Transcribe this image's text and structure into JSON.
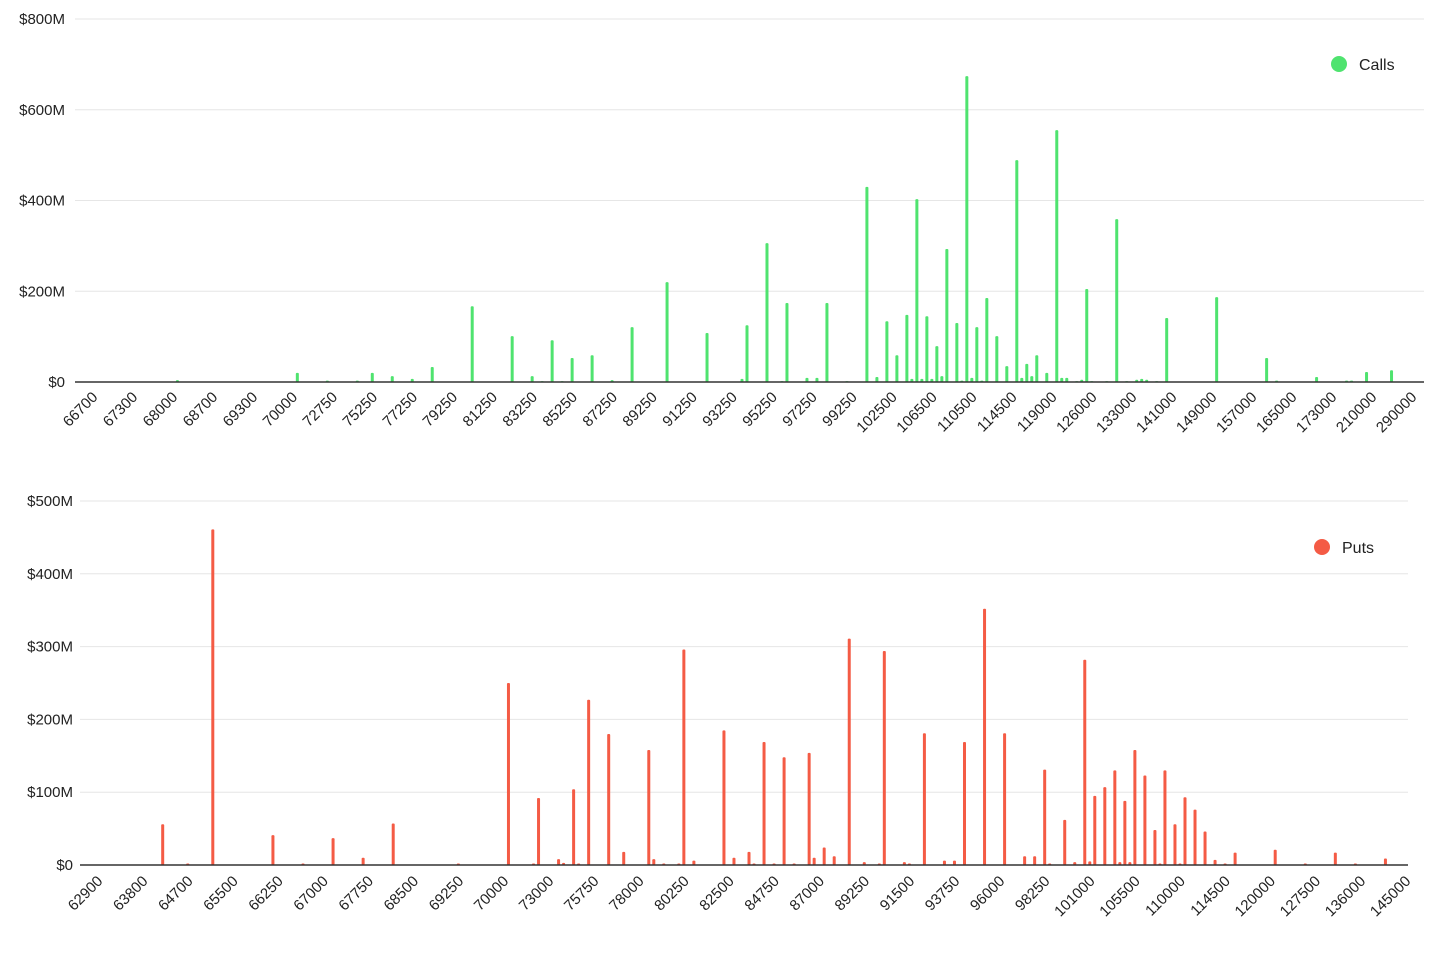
{
  "chart_data": [
    {
      "type": "bar",
      "legend": {
        "label": "Calls",
        "position": "top-right"
      },
      "color": "#4fe36f",
      "y_tick_labels": [
        "$0",
        "$200M",
        "$400M",
        "$600M",
        "$800M"
      ],
      "ylim": [
        0,
        800
      ],
      "yunit": "$M",
      "grid": true,
      "tick_labels": [
        "66700",
        "67300",
        "68000",
        "68700",
        "69300",
        "70000",
        "72750",
        "75250",
        "77250",
        "79250",
        "81250",
        "83250",
        "85250",
        "87250",
        "89250",
        "91250",
        "93250",
        "95250",
        "97250",
        "99250",
        "102500",
        "106500",
        "110500",
        "114500",
        "119000",
        "126000",
        "133000",
        "141000",
        "149000",
        "157000",
        "165000",
        "173000",
        "210000",
        "290000"
      ],
      "values": [
        0,
        0,
        0,
        0,
        0,
        0,
        0,
        0,
        0,
        0,
        0,
        0,
        0,
        0,
        0,
        0,
        0,
        0,
        0,
        0,
        4,
        0,
        0,
        0,
        0,
        0,
        0,
        0,
        0,
        0,
        0,
        0,
        0,
        0,
        0,
        0,
        0,
        0,
        0,
        0,
        0,
        0,
        0,
        0,
        20,
        0,
        0,
        0,
        0,
        0,
        3,
        0,
        0,
        0,
        0,
        0,
        3,
        0,
        0,
        20,
        0,
        0,
        0,
        13,
        0,
        0,
        0,
        7,
        0,
        0,
        0,
        33,
        0,
        0,
        0,
        0,
        0,
        0,
        0,
        167,
        0,
        0,
        0,
        0,
        0,
        0,
        0,
        101,
        0,
        0,
        0,
        13,
        0,
        2,
        0,
        92,
        0,
        2,
        0,
        53,
        0,
        0,
        0,
        59,
        0,
        0,
        0,
        4,
        0,
        0,
        0,
        121,
        0,
        0,
        0,
        0,
        0,
        0,
        220,
        0,
        0,
        0,
        0,
        0,
        0,
        0,
        108,
        0,
        0,
        0,
        0,
        0,
        0,
        7,
        125,
        0,
        0,
        0,
        306,
        0,
        0,
        2,
        174,
        0,
        0,
        0,
        9,
        0,
        9,
        0,
        174,
        0,
        0,
        0,
        2,
        0,
        0,
        0,
        430,
        0,
        11,
        0,
        134,
        0,
        59,
        0,
        148,
        7,
        403,
        7,
        145,
        7,
        79,
        13,
        293,
        0,
        130,
        3,
        674,
        9,
        121,
        3,
        185,
        0,
        101,
        0,
        35,
        0,
        489,
        9,
        40,
        13,
        59,
        0,
        20,
        0,
        555,
        9,
        9,
        0,
        2,
        5,
        205,
        2,
        0,
        0,
        2,
        0,
        359,
        0,
        2,
        0,
        5,
        7,
        5,
        0,
        2,
        0,
        141,
        0,
        0,
        0,
        0,
        0,
        0,
        0,
        0,
        0,
        187,
        0,
        0,
        0,
        0,
        0,
        0,
        0,
        0,
        0,
        53,
        0,
        3,
        0,
        0,
        0,
        0,
        0,
        0,
        0,
        11,
        0,
        0,
        0,
        0,
        0,
        3,
        3,
        0,
        0,
        22,
        0,
        0,
        0,
        0,
        26,
        0,
        0,
        0,
        0,
        0,
        0
      ]
    },
    {
      "type": "bar",
      "legend": {
        "label": "Puts",
        "position": "top-right"
      },
      "color": "#f45b45",
      "y_tick_labels": [
        "$0",
        "$100M",
        "$200M",
        "$300M",
        "$400M",
        "$500M"
      ],
      "ylim": [
        0,
        500
      ],
      "yunit": "$M",
      "grid": true,
      "tick_labels": [
        "62900",
        "63800",
        "64700",
        "65500",
        "66250",
        "67000",
        "67750",
        "68500",
        "69250",
        "70000",
        "73000",
        "75750",
        "78000",
        "80250",
        "82500",
        "84750",
        "87000",
        "89250",
        "91500",
        "93750",
        "96000",
        "98250",
        "101000",
        "105500",
        "110000",
        "114500",
        "120000",
        "127500",
        "136000",
        "145000"
      ],
      "values": [
        0,
        0,
        0,
        0,
        0,
        0,
        0,
        0,
        0,
        0,
        0,
        0,
        0,
        0,
        0,
        0,
        56,
        0,
        0,
        0,
        0,
        2,
        0,
        0,
        0,
        0,
        461,
        0,
        0,
        0,
        0,
        0,
        0,
        0,
        0,
        0,
        0,
        0,
        41,
        0,
        0,
        0,
        0,
        0,
        2,
        0,
        0,
        0,
        0,
        0,
        37,
        0,
        0,
        0,
        0,
        0,
        10,
        0,
        0,
        0,
        0,
        0,
        57,
        0,
        0,
        0,
        0,
        0,
        0,
        0,
        0,
        0,
        0,
        0,
        0,
        2,
        0,
        0,
        0,
        0,
        0,
        0,
        0,
        0,
        0,
        250,
        0,
        0,
        0,
        0,
        2,
        92,
        0,
        0,
        0,
        8,
        3,
        0,
        104,
        2,
        0,
        227,
        0,
        0,
        0,
        180,
        0,
        0,
        18,
        0,
        0,
        0,
        0,
        158,
        8,
        0,
        2,
        0,
        0,
        2,
        296,
        0,
        6,
        0,
        0,
        0,
        0,
        0,
        185,
        0,
        10,
        0,
        0,
        18,
        2,
        0,
        169,
        0,
        2,
        0,
        148,
        0,
        2,
        0,
        0,
        154,
        10,
        0,
        24,
        0,
        12,
        0,
        0,
        311,
        0,
        0,
        4,
        0,
        0,
        2,
        294,
        0,
        0,
        0,
        4,
        2,
        0,
        0,
        181,
        0,
        0,
        0,
        6,
        0,
        6,
        0,
        169,
        0,
        0,
        0,
        352,
        0,
        0,
        0,
        181,
        0,
        0,
        0,
        12,
        0,
        12,
        0,
        131,
        2,
        0,
        0,
        62,
        0,
        4,
        0,
        282,
        5,
        95,
        0,
        107,
        0,
        130,
        4,
        88,
        4,
        158,
        0,
        123,
        0,
        48,
        2,
        130,
        0,
        56,
        2,
        93,
        0,
        76,
        0,
        46,
        0,
        7,
        0,
        2,
        0,
        17,
        0,
        0,
        0,
        0,
        0,
        0,
        0,
        21,
        0,
        0,
        0,
        0,
        0,
        2,
        0,
        0,
        0,
        0,
        0,
        17,
        0,
        0,
        0,
        2,
        0,
        0,
        0,
        0,
        0,
        9,
        0,
        0,
        0,
        0
      ]
    }
  ]
}
